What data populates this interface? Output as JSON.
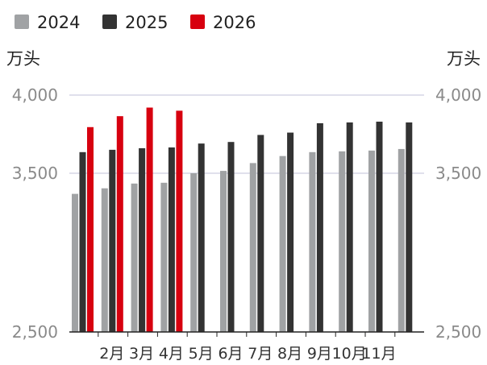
{
  "chart_data": {
    "type": "bar",
    "categories": [
      "",
      "2月",
      "3月",
      "4月",
      "5月",
      "6月",
      "7月",
      "8月",
      "9月",
      "10月",
      "11月",
      ""
    ],
    "series": [
      {
        "name": "2024",
        "color": "#a0a2a4",
        "values": [
          3370,
          3405,
          3435,
          3440,
          3500,
          3515,
          3565,
          3610,
          3635,
          3640,
          3645,
          3655
        ]
      },
      {
        "name": "2025",
        "color": "#333333",
        "values": [
          3635,
          3650,
          3660,
          3665,
          3690,
          3700,
          3745,
          3760,
          3820,
          3825,
          3830,
          3825
        ]
      },
      {
        "name": "2026",
        "color": "#d7000f",
        "values": [
          3795,
          3865,
          3920,
          3900,
          null,
          null,
          null,
          null,
          null,
          null,
          null,
          null
        ]
      }
    ],
    "unit_left": "万头",
    "unit_right": "万头",
    "yticks": [
      "2,500",
      "3,500",
      "4,000"
    ],
    "ytick_values": [
      2500,
      3500,
      4000
    ],
    "ylim": [
      2500,
      4000
    ],
    "scale": "custom: 2,500–3,500 compressed, 3,500–4,000 expanded",
    "grid": "horizontal lines at 3,500 and 4,000",
    "legend": "top-left"
  }
}
